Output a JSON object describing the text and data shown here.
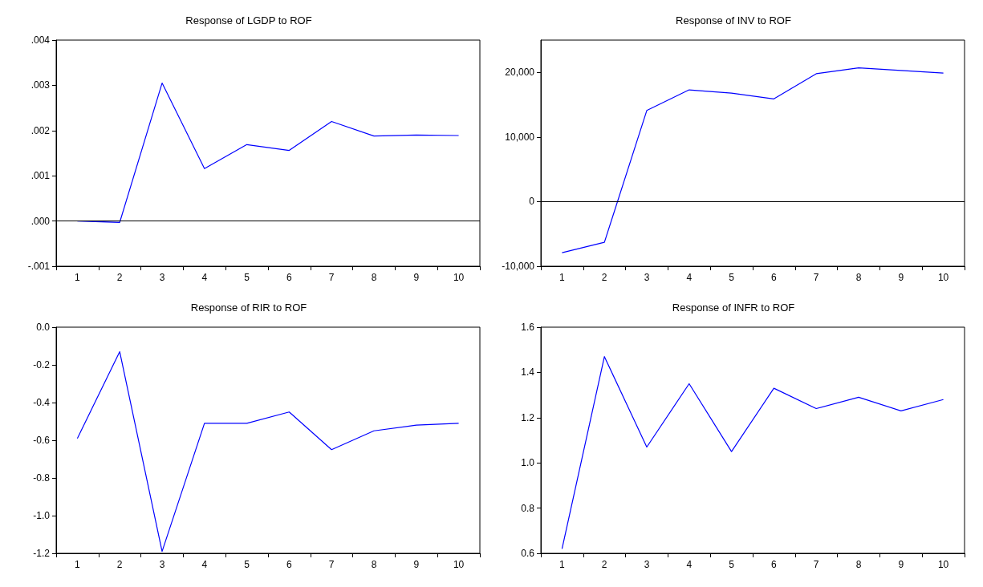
{
  "chart_data": [
    {
      "type": "line",
      "title": "Response of LGDP to ROF",
      "categories": [
        "1",
        "2",
        "3",
        "4",
        "5",
        "6",
        "7",
        "8",
        "9",
        "10"
      ],
      "series": [
        {
          "color": "#0000ff",
          "values": [
            0.0,
            -3e-05,
            0.00305,
            0.00116,
            0.00169,
            0.00156,
            0.0022,
            0.00188,
            0.0019,
            0.00189
          ]
        }
      ],
      "ylim": [
        -0.001,
        0.004
      ],
      "yticks": [
        {
          "value": -0.001,
          "label": "-.001"
        },
        {
          "value": 0,
          "label": ".000"
        },
        {
          "value": 0.001,
          "label": ".001"
        },
        {
          "value": 0.002,
          "label": ".002"
        },
        {
          "value": 0.003,
          "label": ".003"
        },
        {
          "value": 0.004,
          "label": ".004"
        }
      ],
      "ref_lines": [
        {
          "axis": "y",
          "value": 0,
          "color": "#000000"
        }
      ],
      "grid": false,
      "marker": "none"
    },
    {
      "type": "line",
      "title": "Response of INV to ROF",
      "categories": [
        "1",
        "2",
        "3",
        "4",
        "5",
        "6",
        "7",
        "8",
        "9",
        "10"
      ],
      "series": [
        {
          "color": "#0000ff",
          "values": [
            -7900,
            -6300,
            14100,
            17300,
            16800,
            15900,
            19800,
            20700,
            20300,
            19900
          ]
        }
      ],
      "ylim": [
        -10000,
        25000
      ],
      "yticks": [
        {
          "value": -10000,
          "label": "-10,000"
        },
        {
          "value": 0,
          "label": "0"
        },
        {
          "value": 10000,
          "label": "10,000"
        },
        {
          "value": 20000,
          "label": "20,000"
        }
      ],
      "ref_lines": [
        {
          "axis": "y",
          "value": 0,
          "color": "#000000"
        }
      ],
      "grid": false,
      "marker": "none"
    },
    {
      "type": "line",
      "title": "Response of RIR to ROF",
      "categories": [
        "1",
        "2",
        "3",
        "4",
        "5",
        "6",
        "7",
        "8",
        "9",
        "10"
      ],
      "series": [
        {
          "color": "#0000ff",
          "values": [
            -0.59,
            -0.13,
            -1.19,
            -0.51,
            -0.51,
            -0.45,
            -0.65,
            -0.55,
            -0.52,
            -0.51
          ]
        }
      ],
      "ylim": [
        -1.2,
        0
      ],
      "yticks": [
        {
          "value": -1.2,
          "label": "-1.2"
        },
        {
          "value": -1,
          "label": "-1.0"
        },
        {
          "value": -0.8,
          "label": "-0.8"
        },
        {
          "value": -0.6,
          "label": "-0.6"
        },
        {
          "value": -0.4,
          "label": "-0.4"
        },
        {
          "value": -0.2,
          "label": "-0.2"
        },
        {
          "value": 0,
          "label": "0.0"
        }
      ],
      "grid": false,
      "marker": "none"
    },
    {
      "type": "line",
      "title": "Response of INFR to ROF",
      "categories": [
        "1",
        "2",
        "3",
        "4",
        "5",
        "6",
        "7",
        "8",
        "9",
        "10"
      ],
      "series": [
        {
          "color": "#0000ff",
          "values": [
            0.62,
            1.47,
            1.07,
            1.35,
            1.05,
            1.33,
            1.24,
            1.29,
            1.23,
            1.28
          ]
        }
      ],
      "ylim": [
        0.6,
        1.6
      ],
      "yticks": [
        {
          "value": 0.6,
          "label": "0.6"
        },
        {
          "value": 0.8,
          "label": "0.8"
        },
        {
          "value": 1,
          "label": "1.0"
        },
        {
          "value": 1.2,
          "label": "1.2"
        },
        {
          "value": 1.4,
          "label": "1.4"
        },
        {
          "value": 1.6,
          "label": "1.6"
        }
      ],
      "grid": false,
      "marker": "none"
    }
  ]
}
